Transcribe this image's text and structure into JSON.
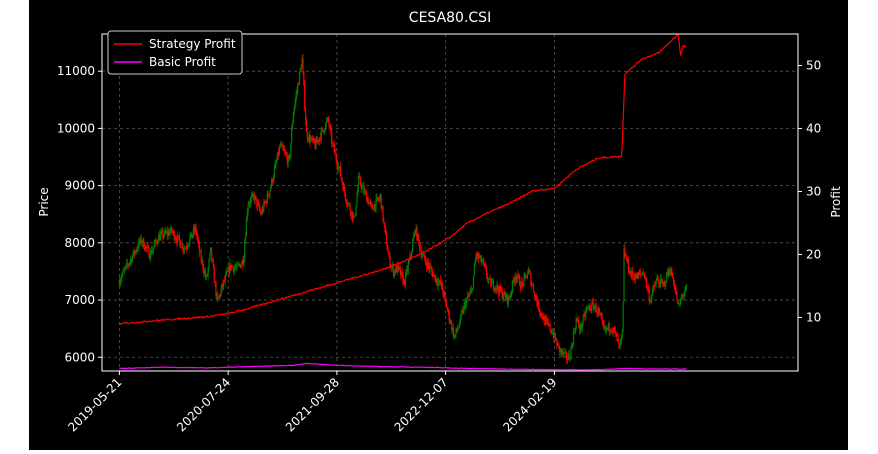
{
  "chart_data": {
    "type": "line",
    "title": "CESA80.CSI",
    "ylabel_left": "Price",
    "ylabel_right": "Profit",
    "x_tick_labels": [
      "2019-05-21",
      "2020-07-24",
      "2021-09-28",
      "2022-12-07",
      "2024-02-19"
    ],
    "y_left_ticks": [
      6000,
      7000,
      8000,
      9000,
      10000,
      11000
    ],
    "y_right_ticks": [
      10,
      20,
      30,
      40,
      50
    ],
    "ylim_left": [
      5760,
      11650
    ],
    "ylim_right": [
      1.5,
      55
    ],
    "xlim_index": [
      -40,
      1560
    ],
    "grid": true,
    "legend_position": "top-left",
    "colors": {
      "up": "#008000",
      "down": "#ff0000",
      "strategy": "#ff0000",
      "basic": "#ff00ff",
      "grid": "#555555",
      "axes": "#ffffff"
    },
    "price_anchors": [
      {
        "i": 0,
        "p": 7350
      },
      {
        "i": 25,
        "p": 7700
      },
      {
        "i": 50,
        "p": 8050
      },
      {
        "i": 70,
        "p": 7800
      },
      {
        "i": 90,
        "p": 8100
      },
      {
        "i": 120,
        "p": 8200
      },
      {
        "i": 150,
        "p": 7900
      },
      {
        "i": 175,
        "p": 8250
      },
      {
        "i": 185,
        "p": 7800
      },
      {
        "i": 200,
        "p": 7350
      },
      {
        "i": 210,
        "p": 7850
      },
      {
        "i": 225,
        "p": 6950
      },
      {
        "i": 235,
        "p": 7200
      },
      {
        "i": 255,
        "p": 7600
      },
      {
        "i": 270,
        "p": 7550
      },
      {
        "i": 285,
        "p": 7700
      },
      {
        "i": 295,
        "p": 8700
      },
      {
        "i": 310,
        "p": 8800
      },
      {
        "i": 325,
        "p": 8500
      },
      {
        "i": 345,
        "p": 8900
      },
      {
        "i": 370,
        "p": 9700
      },
      {
        "i": 390,
        "p": 9400
      },
      {
        "i": 400,
        "p": 10300
      },
      {
        "i": 420,
        "p": 11200
      },
      {
        "i": 430,
        "p": 9900
      },
      {
        "i": 450,
        "p": 9700
      },
      {
        "i": 470,
        "p": 10000
      },
      {
        "i": 480,
        "p": 10150
      },
      {
        "i": 490,
        "p": 9700
      },
      {
        "i": 505,
        "p": 9300
      },
      {
        "i": 520,
        "p": 8800
      },
      {
        "i": 540,
        "p": 8400
      },
      {
        "i": 550,
        "p": 9100
      },
      {
        "i": 565,
        "p": 8850
      },
      {
        "i": 580,
        "p": 8600
      },
      {
        "i": 600,
        "p": 8800
      },
      {
        "i": 610,
        "p": 8200
      },
      {
        "i": 620,
        "p": 7700
      },
      {
        "i": 630,
        "p": 7500
      },
      {
        "i": 640,
        "p": 7550
      },
      {
        "i": 655,
        "p": 7300
      },
      {
        "i": 670,
        "p": 7800
      },
      {
        "i": 680,
        "p": 8250
      },
      {
        "i": 695,
        "p": 7800
      },
      {
        "i": 710,
        "p": 7600
      },
      {
        "i": 725,
        "p": 7400
      },
      {
        "i": 740,
        "p": 7250
      },
      {
        "i": 755,
        "p": 6800
      },
      {
        "i": 770,
        "p": 6350
      },
      {
        "i": 780,
        "p": 6550
      },
      {
        "i": 795,
        "p": 6950
      },
      {
        "i": 810,
        "p": 7150
      },
      {
        "i": 820,
        "p": 7800
      },
      {
        "i": 835,
        "p": 7650
      },
      {
        "i": 850,
        "p": 7300
      },
      {
        "i": 865,
        "p": 7250
      },
      {
        "i": 880,
        "p": 7100
      },
      {
        "i": 895,
        "p": 7000
      },
      {
        "i": 910,
        "p": 7450
      },
      {
        "i": 925,
        "p": 7250
      },
      {
        "i": 940,
        "p": 7500
      },
      {
        "i": 955,
        "p": 7100
      },
      {
        "i": 965,
        "p": 6850
      },
      {
        "i": 980,
        "p": 6600
      },
      {
        "i": 995,
        "p": 6450
      },
      {
        "i": 1010,
        "p": 6150
      },
      {
        "i": 1025,
        "p": 6000
      },
      {
        "i": 1035,
        "p": 6000
      },
      {
        "i": 1050,
        "p": 6650
      },
      {
        "i": 1060,
        "p": 6500
      },
      {
        "i": 1075,
        "p": 6850
      },
      {
        "i": 1090,
        "p": 6900
      },
      {
        "i": 1100,
        "p": 6800
      },
      {
        "i": 1115,
        "p": 6450
      },
      {
        "i": 1130,
        "p": 6550
      },
      {
        "i": 1140,
        "p": 6400
      },
      {
        "i": 1150,
        "p": 6150
      },
      {
        "i": 1157,
        "p": 6450
      },
      {
        "i": 1160,
        "p": 7850
      },
      {
        "i": 1175,
        "p": 7450
      },
      {
        "i": 1190,
        "p": 7400
      },
      {
        "i": 1205,
        "p": 7500
      },
      {
        "i": 1220,
        "p": 7000
      },
      {
        "i": 1235,
        "p": 7350
      },
      {
        "i": 1250,
        "p": 7250
      },
      {
        "i": 1265,
        "p": 7550
      },
      {
        "i": 1275,
        "p": 7300
      },
      {
        "i": 1285,
        "p": 6850
      },
      {
        "i": 1295,
        "p": 7100
      },
      {
        "i": 1305,
        "p": 7200
      }
    ],
    "strategy_anchors": [
      {
        "i": 0,
        "v": 9
      },
      {
        "i": 100,
        "v": 9.6
      },
      {
        "i": 200,
        "v": 10.1
      },
      {
        "i": 250,
        "v": 10.6
      },
      {
        "i": 290,
        "v": 11.3
      },
      {
        "i": 400,
        "v": 13.5
      },
      {
        "i": 500,
        "v": 15.5
      },
      {
        "i": 600,
        "v": 17.5
      },
      {
        "i": 650,
        "v": 18.8
      },
      {
        "i": 700,
        "v": 20.3
      },
      {
        "i": 760,
        "v": 22.7
      },
      {
        "i": 800,
        "v": 25
      },
      {
        "i": 850,
        "v": 26.7
      },
      {
        "i": 900,
        "v": 28.2
      },
      {
        "i": 950,
        "v": 30.1
      },
      {
        "i": 1000,
        "v": 30.5
      },
      {
        "i": 1050,
        "v": 33.5
      },
      {
        "i": 1100,
        "v": 35.3
      },
      {
        "i": 1155,
        "v": 35.6
      },
      {
        "i": 1162,
        "v": 48.7
      },
      {
        "i": 1180,
        "v": 49.7
      },
      {
        "i": 1200,
        "v": 51
      },
      {
        "i": 1240,
        "v": 52
      },
      {
        "i": 1270,
        "v": 54
      },
      {
        "i": 1285,
        "v": 55
      },
      {
        "i": 1290,
        "v": 51.5
      },
      {
        "i": 1295,
        "v": 53
      },
      {
        "i": 1305,
        "v": 53
      }
    ],
    "basic_anchors": [
      {
        "i": 0,
        "v": 1.9
      },
      {
        "i": 100,
        "v": 2.1
      },
      {
        "i": 200,
        "v": 2.0
      },
      {
        "i": 300,
        "v": 2.2
      },
      {
        "i": 400,
        "v": 2.4
      },
      {
        "i": 430,
        "v": 2.7
      },
      {
        "i": 500,
        "v": 2.4
      },
      {
        "i": 600,
        "v": 2.2
      },
      {
        "i": 700,
        "v": 2.1
      },
      {
        "i": 800,
        "v": 1.9
      },
      {
        "i": 900,
        "v": 1.8
      },
      {
        "i": 1000,
        "v": 1.7
      },
      {
        "i": 1100,
        "v": 1.7
      },
      {
        "i": 1160,
        "v": 1.9
      },
      {
        "i": 1200,
        "v": 1.85
      },
      {
        "i": 1305,
        "v": 1.8
      }
    ],
    "series": [
      {
        "name": "Strategy Profit",
        "color": "#ff0000"
      },
      {
        "name": "Basic Profit",
        "color": "#ff00ff"
      }
    ]
  }
}
